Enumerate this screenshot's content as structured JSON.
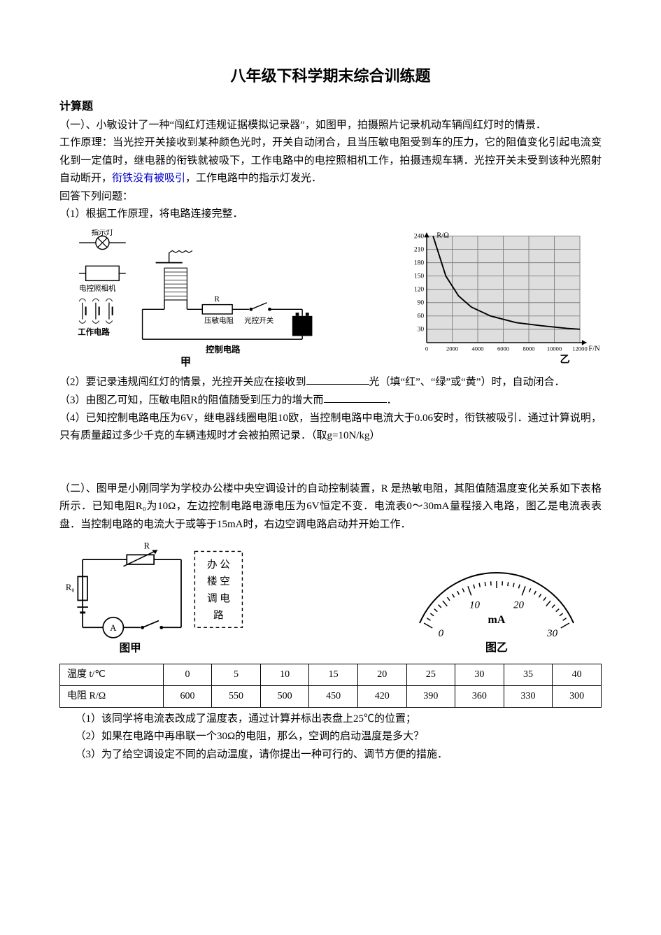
{
  "title": "八年级下科学期末综合训练题",
  "section_heading": "计算题",
  "p1": {
    "intro1": "（一）、小敏设计了一种“闯红灯违规证据模拟记录器”，如图甲，拍摄照片记录机动车辆闯红灯时的情景．",
    "intro2": "工作原理：当光控开关接收到某种颜色光时，开关自动闭合，且当压敏电阻受到车的压力，它的阻值变化引起电流变化到一定值时，继电器的衔铁就被吸下，工作电路中的电控照相机工作，拍摄违规车辆．光控开关未受到该种光照射自动断开，",
    "intro2_blue": "衔铁没有被吸引",
    "intro2_tail": "，工作电路中的指示灯发光．",
    "answer_prompt": "回答下列问题：",
    "q1": "（1）根据工作原理，将电路连接完整．",
    "q2_a": "（2）要记录违规闯红灯的情景，光控开关应在接收到",
    "q2_b": "光（填“红”、“绿”或“黄”）时，自动闭合．",
    "q3_a": "（3）由图乙可知，压敏电阻R的阻值随受到压力的增大而",
    "q3_b": "．",
    "q4": "（4）已知控制电路电压为6V，继电器线圈电阻10欧，当控制电路中电流大于0.06安时，衔铁被吸引．通过计算说明，只有质量超过多少千克的车辆违规时才会被拍照记录．（取g=10N/kg）"
  },
  "fig1": {
    "indicator": "指示灯",
    "camera": "电控照相机",
    "work_circuit": "工作电路",
    "relay_R": "R",
    "pressure_res": "压敏电阻",
    "light_switch": "光控开关",
    "control_circuit": "控制电路",
    "caption": "甲",
    "graph_caption": "乙",
    "graph": {
      "y_label": "R/Ω",
      "x_label": "F/N",
      "y_ticks": [
        "30",
        "60",
        "90",
        "120",
        "150",
        "180",
        "210",
        "240"
      ],
      "x_ticks": [
        "0",
        "2000",
        "4000",
        "6000",
        "8000",
        "10000",
        "12000"
      ],
      "points": [
        [
          500,
          240
        ],
        [
          1500,
          150
        ],
        [
          2500,
          105
        ],
        [
          3500,
          80
        ],
        [
          5000,
          60
        ],
        [
          7000,
          45
        ],
        [
          9000,
          38
        ],
        [
          11000,
          32
        ],
        [
          12000,
          30
        ]
      ],
      "bg": "#dedede",
      "grid": "#808080",
      "line": "#000000"
    }
  },
  "p2": {
    "intro": "（二）、图甲是小刚同学为学校办公楼中央空调设计的自动控制装置，R 是热敏电阻，其阻值随温度变化关系如下表格所示．已知电阻R₀为10Ω，左边控制电路电源电压为6V恒定不变．电流表0～30mA量程接入电路，图乙是电流表表盘．当控制电路的电流大于或等于15mA时，右边空调电路启动并开始工作．",
    "q1": "（1）该同学将电流表改成了温度表，通过计算并标出表盘上25℃的位置；",
    "q2": "（2）如果在电路中再串联一个30Ω的电阻，那么，空调的启动温度是多大？",
    "q3": "（3）为了给空调设定不同的启动温度，请你提出一种可行的、调节方便的措施．"
  },
  "fig2": {
    "R0": "R₀",
    "R": "R",
    "A": "A",
    "box_l1": "办 公",
    "box_l2": "楼 空",
    "box_l3": "调 电",
    "box_l4": "路",
    "caption1": "图甲",
    "caption2": "图乙",
    "ammeter": {
      "ticks": [
        "0",
        "10",
        "20",
        "30"
      ],
      "unit": "mA"
    }
  },
  "table": {
    "row1_header": "温度 t/℃",
    "row2_header": "电阻 R/Ω",
    "temps": [
      "0",
      "5",
      "10",
      "15",
      "20",
      "25",
      "30",
      "35",
      "40"
    ],
    "res": [
      "600",
      "550",
      "500",
      "450",
      "420",
      "390",
      "360",
      "330",
      "300"
    ]
  }
}
